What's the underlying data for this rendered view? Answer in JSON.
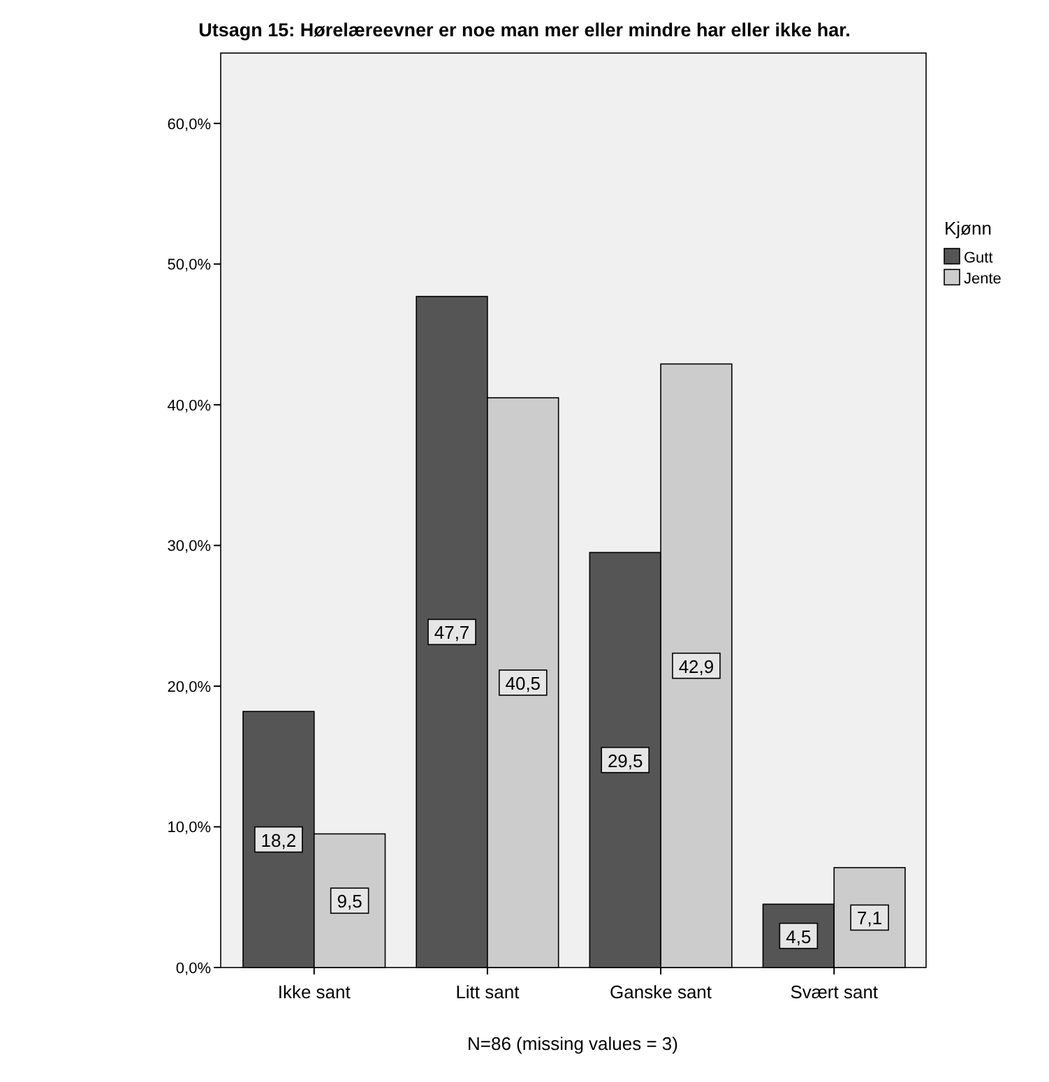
{
  "chart_data": {
    "type": "bar",
    "title": "Utsagn 15: Hørelæreevner er noe man mer eller mindre har eller ikke har.",
    "categories": [
      "Ikke sant",
      "Litt sant",
      "Ganske sant",
      "Svært sant"
    ],
    "series": [
      {
        "name": "Gutt",
        "color": "#555555",
        "values": [
          18.2,
          47.7,
          29.5,
          4.5
        ],
        "value_labels": [
          "18,2",
          "47,7",
          "29,5",
          "4,5"
        ]
      },
      {
        "name": "Jente",
        "color": "#cccccc",
        "values": [
          9.5,
          40.5,
          42.9,
          7.1
        ],
        "value_labels": [
          "9,5",
          "40,5",
          "42,9",
          "7,1"
        ]
      }
    ],
    "ylim": [
      0,
      65
    ],
    "yticks": [
      {
        "value": 0,
        "label": "0,0%"
      },
      {
        "value": 10,
        "label": "10,0%"
      },
      {
        "value": 20,
        "label": "20,0%"
      },
      {
        "value": 30,
        "label": "30,0%"
      },
      {
        "value": 40,
        "label": "40,0%"
      },
      {
        "value": 50,
        "label": "50,0%"
      },
      {
        "value": 60,
        "label": "60,0%"
      }
    ],
    "legend": "right",
    "legend_title": "Kjønn",
    "grid": false,
    "annotations": [
      "N=86 (missing values = 3)"
    ]
  }
}
